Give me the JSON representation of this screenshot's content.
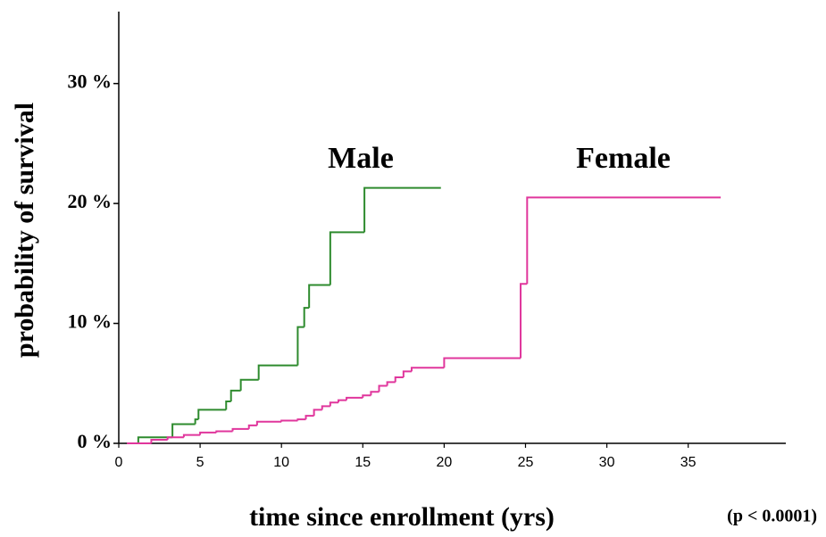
{
  "chart_data": {
    "type": "step",
    "xlabel": "time since enrollment (yrs)",
    "ylabel": "probability of survival",
    "annotation": "(p < 0.0001)",
    "xlim": [
      0,
      41
    ],
    "ylim": [
      0,
      36
    ],
    "xticks": [
      0,
      5,
      10,
      15,
      20,
      25,
      30,
      35
    ],
    "yticks": [
      {
        "value": 0,
        "label": "0 %"
      },
      {
        "value": 10,
        "label": "10 %"
      },
      {
        "value": 20,
        "label": "20 %"
      },
      {
        "value": 30,
        "label": "30 %"
      }
    ],
    "series": [
      {
        "name": "Male",
        "color": "#2e8b2e",
        "x": [
          0.5,
          1.2,
          3.3,
          4.7,
          4.9,
          6.6,
          6.9,
          7.5,
          8.6,
          11.0,
          11.4,
          11.7,
          13.0,
          15.1,
          19.8
        ],
        "values": [
          0,
          0.5,
          1.6,
          2.0,
          2.8,
          3.5,
          4.4,
          5.3,
          6.5,
          9.7,
          11.3,
          13.2,
          17.6,
          21.3,
          21.3
        ]
      },
      {
        "name": "Female",
        "color": "#e0369c",
        "x": [
          0.5,
          2,
          3,
          4,
          5,
          6,
          7,
          8,
          8.5,
          10,
          11,
          11.5,
          12,
          12.5,
          13,
          13.5,
          14,
          15,
          15.5,
          16,
          16.5,
          17,
          17.5,
          18,
          20,
          24.7,
          25.1,
          37.0
        ],
        "values": [
          0,
          0.3,
          0.5,
          0.7,
          0.9,
          1.0,
          1.2,
          1.5,
          1.8,
          1.9,
          2.0,
          2.3,
          2.8,
          3.1,
          3.4,
          3.6,
          3.8,
          4.0,
          4.3,
          4.8,
          5.1,
          5.5,
          6.0,
          6.3,
          7.1,
          13.3,
          20.5,
          20.5
        ]
      }
    ]
  }
}
